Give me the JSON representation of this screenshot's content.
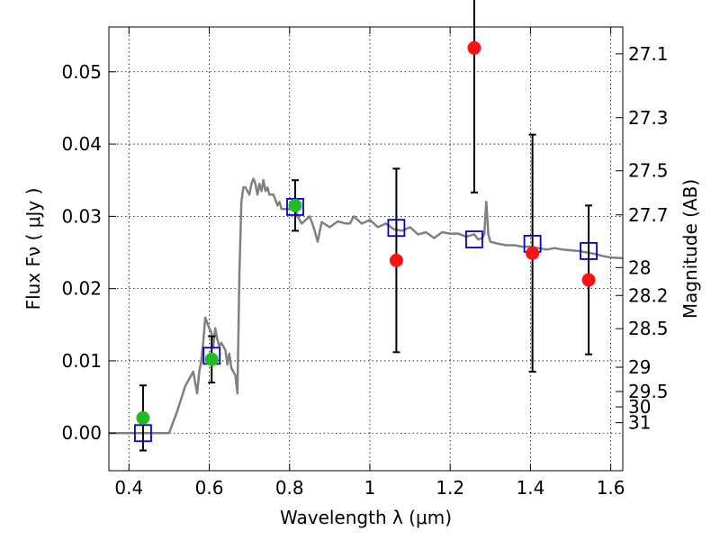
{
  "chart_data": {
    "type": "scatter",
    "xlabel": "Wavelength  λ (μm)",
    "ylabel": "Flux  Fν  ( μJy )",
    "y2label": "Magnitude (AB)",
    "xlim": [
      0.35,
      1.63
    ],
    "ylim": [
      -0.0052,
      0.0562
    ],
    "x_ticks": [
      0.4,
      0.6,
      0.8,
      1.0,
      1.2,
      1.4,
      1.6
    ],
    "x_tick_labels": [
      "0.4",
      "0.6",
      "0.8",
      "1",
      "1.2",
      "1.4",
      "1.6"
    ],
    "y_ticks": [
      0.0,
      0.01,
      0.02,
      0.03,
      0.04,
      0.05
    ],
    "y_tick_labels": [
      "0.00",
      "0.01",
      "0.02",
      "0.03",
      "0.04",
      "0.05"
    ],
    "mag_ticks": [
      27.1,
      27.3,
      27.5,
      27.7,
      28,
      28.2,
      28.5,
      29,
      29.5,
      30,
      31
    ],
    "mag_tick_labels": [
      "27.1",
      "27.3",
      "27.5",
      "27.7",
      "28",
      "28.2",
      "28.5",
      "29",
      "29.5",
      "30",
      "31"
    ],
    "grid": true,
    "colors": {
      "model": "#808080",
      "detection": "#22bb22",
      "nondetection": "#ff1111",
      "model_band": "#0000cc",
      "errorbar": "#000000"
    },
    "model_spectrum": {
      "x": [
        0.35,
        0.5,
        0.52,
        0.54,
        0.55,
        0.56,
        0.57,
        0.575,
        0.58,
        0.585,
        0.59,
        0.6,
        0.605,
        0.61,
        0.615,
        0.62,
        0.625,
        0.63,
        0.64,
        0.645,
        0.65,
        0.655,
        0.66,
        0.665,
        0.67,
        0.675,
        0.68,
        0.685,
        0.69,
        0.7,
        0.705,
        0.71,
        0.715,
        0.72,
        0.725,
        0.73,
        0.735,
        0.74,
        0.745,
        0.75,
        0.76,
        0.77,
        0.775,
        0.78,
        0.79,
        0.8,
        0.81,
        0.82,
        0.83,
        0.84,
        0.85,
        0.86,
        0.87,
        0.88,
        0.9,
        0.92,
        0.94,
        0.95,
        0.96,
        0.98,
        1.0,
        1.02,
        1.04,
        1.06,
        1.08,
        1.1,
        1.12,
        1.14,
        1.16,
        1.18,
        1.2,
        1.22,
        1.24,
        1.26,
        1.27,
        1.28,
        1.285,
        1.29,
        1.295,
        1.3,
        1.32,
        1.34,
        1.36,
        1.38,
        1.4,
        1.42,
        1.44,
        1.46,
        1.48,
        1.5,
        1.52,
        1.54,
        1.56,
        1.58,
        1.6,
        1.63
      ],
      "y": [
        0.0,
        0.0,
        0.003,
        0.0065,
        0.0075,
        0.0085,
        0.0055,
        0.0085,
        0.01,
        0.0125,
        0.016,
        0.0145,
        0.014,
        0.012,
        0.0145,
        0.013,
        0.012,
        0.0125,
        0.0115,
        0.0095,
        0.011,
        0.009,
        0.0085,
        0.008,
        0.0055,
        0.022,
        0.032,
        0.034,
        0.034,
        0.033,
        0.0345,
        0.0352,
        0.0345,
        0.033,
        0.0345,
        0.0335,
        0.035,
        0.0335,
        0.034,
        0.033,
        0.033,
        0.0315,
        0.032,
        0.031,
        0.031,
        0.031,
        0.032,
        0.03,
        0.029,
        0.0295,
        0.03,
        0.0285,
        0.0265,
        0.0292,
        0.0285,
        0.0293,
        0.029,
        0.029,
        0.03,
        0.029,
        0.0295,
        0.0285,
        0.029,
        0.0282,
        0.028,
        0.0285,
        0.0275,
        0.0278,
        0.027,
        0.0278,
        0.0276,
        0.0276,
        0.0272,
        0.0275,
        0.0268,
        0.027,
        0.0275,
        0.032,
        0.0275,
        0.0265,
        0.0262,
        0.026,
        0.026,
        0.0258,
        0.0258,
        0.0256,
        0.0254,
        0.0256,
        0.0254,
        0.0253,
        0.0252,
        0.025,
        0.0248,
        0.0245,
        0.0243,
        0.0242
      ]
    },
    "model_band_fluxes": [
      {
        "x": 0.435,
        "y": 0.0
      },
      {
        "x": 0.606,
        "y": 0.0107
      },
      {
        "x": 0.814,
        "y": 0.0313
      },
      {
        "x": 1.066,
        "y": 0.0284
      },
      {
        "x": 1.26,
        "y": 0.0268
      },
      {
        "x": 1.405,
        "y": 0.0262
      },
      {
        "x": 1.545,
        "y": 0.0252
      }
    ],
    "detections": [
      {
        "x": 0.435,
        "y": 0.0021,
        "yerr": 0.0045
      },
      {
        "x": 0.606,
        "y": 0.0102,
        "yerr": 0.0032
      },
      {
        "x": 0.814,
        "y": 0.0315,
        "yerr": 0.0035
      }
    ],
    "nondetections": [
      {
        "x": 1.066,
        "y": 0.0239,
        "yerr": 0.0127
      },
      {
        "x": 1.26,
        "y": 0.0533,
        "yerr": 0.02
      },
      {
        "x": 1.405,
        "y": 0.0249,
        "yerr": 0.0164
      },
      {
        "x": 1.545,
        "y": 0.0212,
        "yerr": 0.0103
      }
    ]
  }
}
